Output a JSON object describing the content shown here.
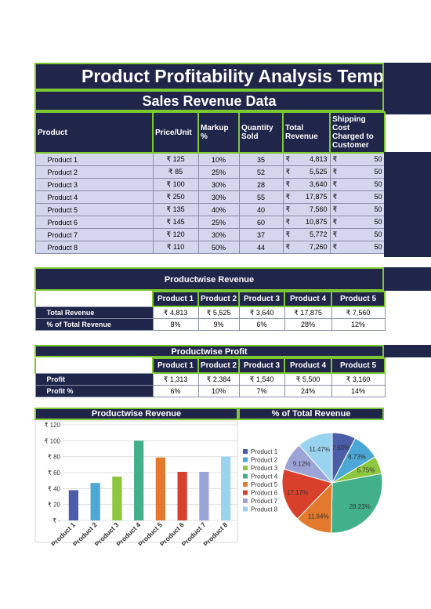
{
  "title": "Product Profitability Analysis Temp",
  "subtitle": "Sales Revenue Data",
  "sales_table": {
    "headers": [
      "Product",
      "Price/Unit",
      "Markup %",
      "Quantity Sold",
      "Total Revenue",
      "Shipping Cost Charged to Customer"
    ],
    "rows": [
      {
        "product": "Product 1",
        "price": "₹ 125",
        "markup": "10%",
        "qty": "35",
        "rev": "4,813",
        "ship": "50"
      },
      {
        "product": "Product 2",
        "price": "₹ 85",
        "markup": "25%",
        "qty": "52",
        "rev": "5,525",
        "ship": "50"
      },
      {
        "product": "Product 3",
        "price": "₹ 100",
        "markup": "30%",
        "qty": "28",
        "rev": "3,640",
        "ship": "50"
      },
      {
        "product": "Product 4",
        "price": "₹ 250",
        "markup": "30%",
        "qty": "55",
        "rev": "17,875",
        "ship": "50"
      },
      {
        "product": "Product 5",
        "price": "₹ 135",
        "markup": "40%",
        "qty": "40",
        "rev": "7,560",
        "ship": "50"
      },
      {
        "product": "Product 6",
        "price": "₹ 145",
        "markup": "25%",
        "qty": "60",
        "rev": "10,875",
        "ship": "50"
      },
      {
        "product": "Product 7",
        "price": "₹ 120",
        "markup": "30%",
        "qty": "37",
        "rev": "5,772",
        "ship": "50"
      },
      {
        "product": "Product 8",
        "price": "₹ 110",
        "markup": "50%",
        "qty": "44",
        "rev": "7,260",
        "ship": "50"
      }
    ],
    "currency_symbol": "₹"
  },
  "revenue_section": {
    "title": "Productwise Revenue",
    "headers": [
      "Product 1",
      "Product 2",
      "Product 3",
      "Product 4",
      "Product 5"
    ],
    "rows": [
      {
        "label": "Total Revenue",
        "values": [
          "₹ 4,813",
          "₹ 5,525",
          "₹ 3,640",
          "₹ 17,875",
          "₹ 7,560"
        ]
      },
      {
        "label": "% of Total Revenue",
        "values": [
          "8%",
          "9%",
          "6%",
          "28%",
          "12%"
        ]
      }
    ]
  },
  "profit_section": {
    "title": "Productwise Profit",
    "headers": [
      "Product 1",
      "Product 2",
      "Product 3",
      "Product 4",
      "Product 5"
    ],
    "rows": [
      {
        "label": "Profit",
        "values": [
          "₹ 1,313",
          "₹ 2,384",
          "₹ 1,540",
          "₹ 5,500",
          "₹ 3,160"
        ]
      },
      {
        "label": "Profit %",
        "values": [
          "6%",
          "10%",
          "7%",
          "24%",
          "14%"
        ]
      }
    ]
  },
  "colors": {
    "navy": "#20254a",
    "green_border": "#7dc832",
    "row_fill": "#d3d6ec",
    "series": [
      "#4b5ca8",
      "#4aa7d6",
      "#8dc63f",
      "#42b08a",
      "#e2792c",
      "#d9402b",
      "#9ca3d6",
      "#99d3ef"
    ]
  },
  "chart_data": [
    {
      "type": "bar",
      "title": "Productwise Revenue",
      "categories": [
        "Product 1",
        "Product 2",
        "Product 3",
        "Product 4",
        "Product 5",
        "Product 6",
        "Product 7",
        "Product 8"
      ],
      "values": [
        38,
        47,
        55,
        100,
        79,
        61,
        61,
        80
      ],
      "ylim": [
        0,
        120
      ],
      "yticks": [
        "₹ 120",
        "₹ 100",
        "₹ 80",
        "₹ 60",
        "₹ 40",
        "₹ 20",
        "₹ -"
      ],
      "ytick_values": [
        120,
        100,
        80,
        60,
        40,
        20,
        0
      ],
      "legend": [
        "Product 1",
        "Product 2",
        "Product 3",
        "Product 4",
        "Product 5",
        "Product 6",
        "Product 7",
        "Product 8"
      ],
      "legend_position": "right"
    },
    {
      "type": "pie",
      "title": "% of Total Revenue",
      "categories": [
        "Product 1",
        "Product 2",
        "Product 3",
        "Product 4",
        "Product 5",
        "Product 6",
        "Product 7",
        "Product 8"
      ],
      "values": [
        7.6,
        8.73,
        5.75,
        28.23,
        11.94,
        17.17,
        9.12,
        11.47
      ],
      "labels": [
        "7.60%",
        "8.73%",
        "5.75%",
        "28.23%",
        "11.94%",
        "17.17%",
        "9.12%",
        "11.47%"
      ]
    }
  ]
}
